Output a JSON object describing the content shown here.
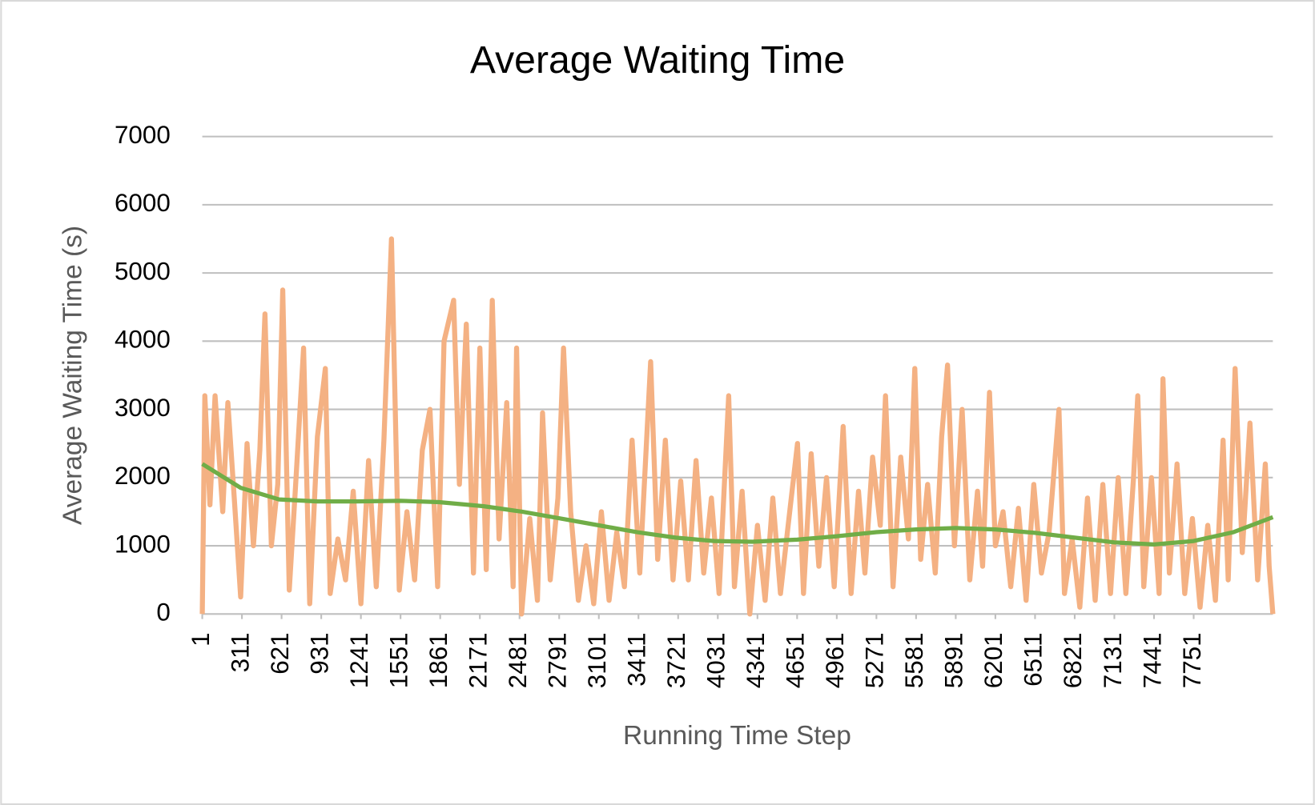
{
  "chart_data": {
    "type": "line",
    "title": "Average Waiting Time",
    "x_label": "Running Time Step",
    "y_label": "Average Waiting Time (s)",
    "xlim": [
      1,
      8370
    ],
    "xticks": [
      1,
      311,
      621,
      931,
      1241,
      1551,
      1861,
      2171,
      2481,
      2791,
      3101,
      3411,
      3721,
      4031,
      4341,
      4651,
      4961,
      5271,
      5581,
      5891,
      6201,
      6511,
      6821,
      7131,
      7441,
      7751
    ],
    "ylim": [
      0,
      7000
    ],
    "yticks": [
      0,
      1000,
      2000,
      3000,
      4000,
      5000,
      6000,
      7000
    ],
    "grid": true,
    "series": [
      {
        "color": "#f4b183",
        "x": [
          1,
          21,
          61,
          101,
          161,
          201,
          251,
          301,
          351,
          401,
          451,
          491,
          541,
          591,
          630,
          681,
          731,
          793,
          841,
          901,
          963,
          1001,
          1061,
          1121,
          1181,
          1241,
          1301,
          1361,
          1421,
          1480,
          1541,
          1601,
          1661,
          1721,
          1781,
          1841,
          1891,
          1966,
          2011,
          2065,
          2121,
          2171,
          2221,
          2268,
          2321,
          2381,
          2431,
          2458,
          2497,
          2561,
          2621,
          2661,
          2721,
          2781,
          2825,
          2881,
          2941,
          3001,
          3061,
          3121,
          3181,
          3241,
          3301,
          3361,
          3421,
          3506,
          3561,
          3621,
          3681,
          3741,
          3801,
          3861,
          3921,
          3981,
          4041,
          4116,
          4161,
          4221,
          4281,
          4341,
          4401,
          4461,
          4521,
          4581,
          4654,
          4701,
          4761,
          4821,
          4881,
          4941,
          5011,
          5073,
          5131,
          5181,
          5241,
          5301,
          5342,
          5401,
          5461,
          5521,
          5571,
          5617,
          5671,
          5731,
          5781,
          5827,
          5881,
          5941,
          6001,
          6061,
          6101,
          6155,
          6201,
          6261,
          6321,
          6381,
          6441,
          6501,
          6561,
          6621,
          6698,
          6741,
          6801,
          6861,
          6921,
          6981,
          7041,
          7101,
          7161,
          7221,
          7281,
          7314,
          7361,
          7421,
          7481,
          7511,
          7561,
          7621,
          7681,
          7741,
          7801,
          7861,
          7921,
          7981,
          8021,
          8075,
          8131,
          8191,
          8251,
          8311,
          8341,
          8370
        ],
        "values": [
          0,
          3200,
          1600,
          3200,
          1500,
          3100,
          1700,
          250,
          2500,
          1000,
          2400,
          4400,
          1000,
          1900,
          4750,
          350,
          1900,
          3900,
          150,
          2600,
          3600,
          300,
          1100,
          500,
          1800,
          150,
          2250,
          400,
          2550,
          5500,
          350,
          1500,
          500,
          2400,
          3000,
          400,
          4000,
          4600,
          1900,
          4250,
          600,
          3900,
          650,
          4600,
          1100,
          3100,
          400,
          3900,
          0,
          1400,
          200,
          2950,
          500,
          1700,
          3900,
          1500,
          200,
          1000,
          150,
          1500,
          200,
          1200,
          400,
          2550,
          600,
          3700,
          800,
          2550,
          500,
          1950,
          500,
          2250,
          600,
          1700,
          300,
          3200,
          400,
          1800,
          0,
          1300,
          200,
          1700,
          300,
          1300,
          2500,
          300,
          2350,
          700,
          2000,
          400,
          2750,
          300,
          1800,
          600,
          2300,
          1300,
          3200,
          400,
          2300,
          1100,
          3600,
          800,
          1900,
          600,
          2600,
          3650,
          1000,
          3000,
          500,
          1800,
          700,
          3250,
          1000,
          1500,
          400,
          1550,
          200,
          1900,
          600,
          1200,
          3000,
          300,
          1100,
          100,
          1700,
          200,
          1900,
          300,
          2000,
          300,
          2000,
          3200,
          400,
          2000,
          300,
          3450,
          600,
          2200,
          300,
          1400,
          100,
          1300,
          200,
          2550,
          500,
          3600,
          900,
          2800,
          500,
          2200,
          700,
          0
        ]
      },
      {
        "color": "#70ad47",
        "x": [
          1,
          301,
          601,
          901,
          1201,
          1551,
          1851,
          2201,
          2501,
          2801,
          3101,
          3401,
          3701,
          4001,
          4301,
          4651,
          4961,
          5271,
          5581,
          5891,
          6201,
          6511,
          6821,
          7131,
          7441,
          7751,
          8061,
          8370
        ],
        "values": [
          2200,
          1850,
          1680,
          1650,
          1650,
          1660,
          1640,
          1580,
          1500,
          1400,
          1300,
          1200,
          1120,
          1070,
          1060,
          1090,
          1140,
          1200,
          1240,
          1260,
          1240,
          1190,
          1120,
          1050,
          1020,
          1070,
          1200,
          1420
        ]
      }
    ]
  }
}
